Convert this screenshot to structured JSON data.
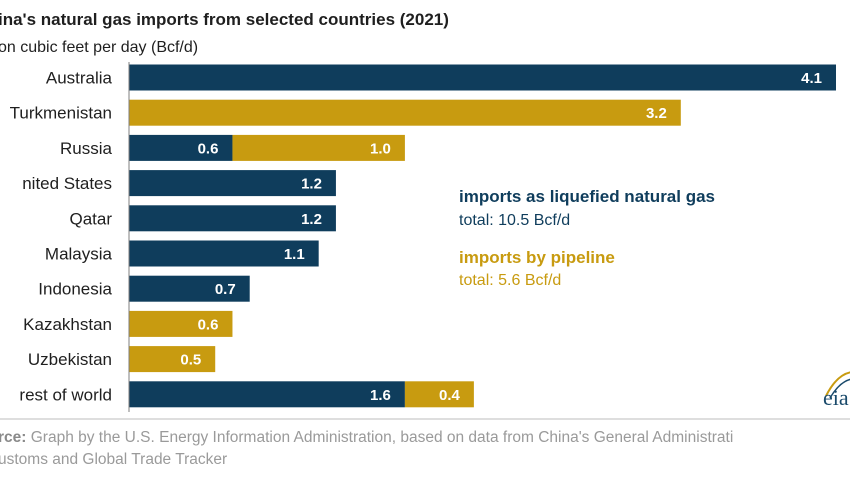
{
  "colors": {
    "lng": "#0f3d5c",
    "pipeline": "#c89b10",
    "axis": "#7f7f7f",
    "source_rule": "#bdbdbd"
  },
  "chart_data": {
    "type": "bar",
    "orientation": "horizontal",
    "stacked": true,
    "title": "ina's natural gas imports from selected countries (2021)",
    "subtitle": "on cubic feet per day (Bcf/d)",
    "categories": [
      "Australia",
      "Turkmenistan",
      "Russia",
      "nited  States",
      "Qatar",
      "Malaysia",
      "Indonesia",
      "Kazakhstan",
      "Uzbekistan",
      "rest of world"
    ],
    "series": [
      {
        "name": "imports as liquefied natural gas",
        "total": "total: 10.5 Bcf/d",
        "values": [
          4.1,
          0,
          0.6,
          1.2,
          1.2,
          1.1,
          0.7,
          0,
          0,
          1.6
        ],
        "labels": [
          "4.1",
          "",
          "0.6",
          "1.2",
          "1.2",
          "1.1",
          "0.7",
          "",
          "",
          "1.6"
        ]
      },
      {
        "name": "imports by pipeline",
        "total": "total: 5.6 Bcf/d",
        "values": [
          0,
          3.2,
          1.0,
          0,
          0,
          0,
          0,
          0.6,
          0.5,
          0.4
        ],
        "labels": [
          "",
          "3.2",
          "1.0",
          "",
          "",
          "",
          "",
          "0.6",
          "0.5",
          "0.4"
        ]
      }
    ],
    "xlim": [
      0,
      4.1
    ],
    "grid": false,
    "legend_position": "right"
  },
  "source": {
    "label": "rce:",
    "line1": " Graph by the U.S. Energy Information Administration, based on data from China's General Administrati",
    "line2": "ustoms and Global Trade Tracker"
  },
  "logo": {
    "text": "eia"
  }
}
